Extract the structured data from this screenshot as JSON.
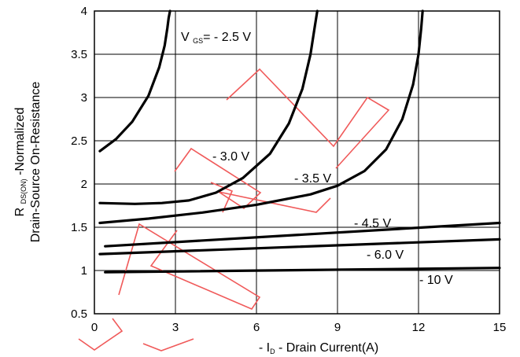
{
  "chart_data": {
    "type": "line",
    "xlabel": {
      "prefix": "- I",
      "sub": "D",
      "suffix": " - Drain Current(A)"
    },
    "ylabel": {
      "line1_prefix": "R ",
      "line1_sub": "DS(ON)",
      "line1_suffix": " -Normalized",
      "line2": "Drain-Source On-Resistance"
    },
    "xlim": [
      0,
      15
    ],
    "ylim": [
      0.5,
      4
    ],
    "xticks": [
      0,
      3,
      6,
      9,
      12,
      15
    ],
    "yticks": [
      0.5,
      1,
      1.5,
      2,
      2.5,
      3,
      3.5,
      4
    ],
    "grid": true,
    "series": [
      {
        "label": {
          "prefix": "V ",
          "sub": "GS",
          "suffix": "= - 2.5 V"
        },
        "x": [
          0.2,
          0.8,
          1.4,
          2.0,
          2.4,
          2.6,
          2.7,
          2.75,
          2.8
        ],
        "y": [
          2.38,
          2.52,
          2.72,
          3.02,
          3.35,
          3.6,
          3.8,
          3.92,
          4.0
        ]
      },
      {
        "label": {
          "prefix": "",
          "sub": "",
          "suffix": "- 3.0 V"
        },
        "x": [
          0.2,
          1.5,
          2.5,
          3.5,
          4.5,
          5.5,
          6.5,
          7.2,
          7.7,
          8.0,
          8.15,
          8.25
        ],
        "y": [
          1.78,
          1.77,
          1.78,
          1.81,
          1.9,
          2.07,
          2.35,
          2.7,
          3.1,
          3.5,
          3.8,
          4.0
        ]
      },
      {
        "label": {
          "prefix": "",
          "sub": "",
          "suffix": "- 3.5 V"
        },
        "x": [
          0.2,
          2,
          4,
          6,
          8,
          9,
          10,
          10.8,
          11.4,
          11.8,
          12.0,
          12.1,
          12.15
        ],
        "y": [
          1.55,
          1.6,
          1.67,
          1.76,
          1.88,
          1.98,
          2.15,
          2.4,
          2.75,
          3.15,
          3.5,
          3.8,
          4.0
        ]
      },
      {
        "label": {
          "prefix": "",
          "sub": "",
          "suffix": "- 4.5 V"
        },
        "x": [
          0.4,
          15
        ],
        "y": [
          1.28,
          1.55
        ]
      },
      {
        "label": {
          "prefix": "",
          "sub": "",
          "suffix": "- 6.0 V"
        },
        "x": [
          0.2,
          15
        ],
        "y": [
          1.19,
          1.36
        ]
      },
      {
        "label": {
          "prefix": "",
          "sub": "",
          "suffix": "- 10 V"
        },
        "x": [
          0.4,
          15
        ],
        "y": [
          0.98,
          1.03
        ]
      }
    ],
    "watermark_color": "#f05a5a"
  }
}
